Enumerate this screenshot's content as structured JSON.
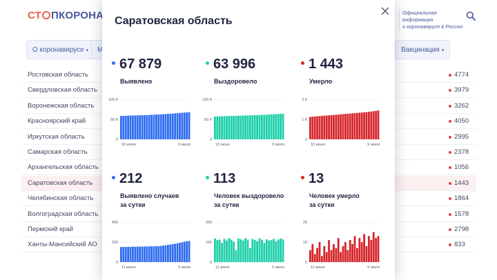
{
  "header": {
    "logo": {
      "part1": "СТ",
      "part2": "ПКОРОНАВИ"
    },
    "official_line1": "Официальная информация",
    "official_line2": "о коронавирусе в России",
    "search_icon": "search-icon"
  },
  "nav": {
    "about": "О коронавирусе",
    "m_fragment": "М",
    "vaccination": "Вакцинация"
  },
  "regions": [
    {
      "name": "Ростовская область",
      "value": "4774"
    },
    {
      "name": "Свердловская область",
      "value": "3979"
    },
    {
      "name": "Воронежская область",
      "value": "3262"
    },
    {
      "name": "Красноярский край",
      "value": "4050"
    },
    {
      "name": "Иркутская область",
      "value": "2995"
    },
    {
      "name": "Самарская область",
      "value": "2378"
    },
    {
      "name": "Архангельская область",
      "value": "1056"
    },
    {
      "name": "Саратовская область",
      "value": "1443",
      "highlight": true
    },
    {
      "name": "Челябинская область",
      "value": "1864"
    },
    {
      "name": "Волгоградская область",
      "value": "1578"
    },
    {
      "name": "Пермский край",
      "value": "2798"
    },
    {
      "name": "Ханты-Мансийский АО",
      "value": "833"
    }
  ],
  "modal": {
    "title": "Саратовская область",
    "close_icon": "close-icon",
    "stats": [
      {
        "value": "67 879",
        "label": "Выявлено",
        "color": "#2f6cf0"
      },
      {
        "value": "63 996",
        "label": "Выздоровело",
        "color": "#1ccfa8"
      },
      {
        "value": "1 443",
        "label": "Умерло",
        "color": "#d5242a"
      },
      {
        "value": "212",
        "label": "Выявлено случаев\nза сутки",
        "color": "#2f6cf0"
      },
      {
        "value": "113",
        "label": "Человек выздоровело\nза сутки",
        "color": "#1ccfa8"
      },
      {
        "value": "13",
        "label": "Человек умерло\nза сутки",
        "color": "#d5242a"
      }
    ]
  },
  "chart_data": [
    {
      "type": "bar",
      "series_color": "#2f6cf0",
      "yticks": [
        "100 К",
        "50 К",
        "0"
      ],
      "ylim": [
        0,
        100000
      ],
      "xlabels": [
        "10 июня",
        "9 июля"
      ],
      "values": [
        58500,
        58700,
        58900,
        59100,
        59300,
        59500,
        59700,
        59900,
        60100,
        60300,
        60500,
        60700,
        60900,
        61200,
        61500,
        61800,
        62100,
        62400,
        62800,
        63200,
        63600,
        64000,
        64400,
        64900,
        65400,
        65900,
        66400,
        66900,
        67400,
        67879
      ]
    },
    {
      "type": "bar",
      "series_color": "#1ccfa8",
      "yticks": [
        "100 К",
        "50 К",
        "0"
      ],
      "ylim": [
        0,
        100000
      ],
      "xlabels": [
        "10 июня",
        "9 июля"
      ],
      "values": [
        57000,
        57200,
        57400,
        57600,
        57800,
        58000,
        58200,
        58400,
        58600,
        58800,
        59000,
        59200,
        59400,
        59600,
        59800,
        60000,
        60200,
        60400,
        60600,
        60800,
        61100,
        61400,
        61700,
        62000,
        62300,
        62600,
        62900,
        63200,
        63600,
        63996
      ]
    },
    {
      "type": "bar",
      "series_color": "#d5242a",
      "yticks": [
        "2 К",
        "1 К",
        "0"
      ],
      "ylim": [
        0,
        2000
      ],
      "xlabels": [
        "10 июня",
        "9 июля"
      ],
      "values": [
        1120,
        1130,
        1140,
        1150,
        1160,
        1170,
        1180,
        1190,
        1200,
        1210,
        1220,
        1230,
        1240,
        1250,
        1260,
        1270,
        1280,
        1290,
        1300,
        1310,
        1320,
        1330,
        1340,
        1350,
        1360,
        1375,
        1390,
        1405,
        1425,
        1443
      ]
    },
    {
      "type": "bar",
      "series_color": "#2f6cf0",
      "yticks": [
        "400",
        "200",
        "0"
      ],
      "ylim": [
        0,
        400
      ],
      "xlabels": [
        "11 июня",
        "9 июля"
      ],
      "values": [
        150,
        152,
        151,
        153,
        152,
        154,
        153,
        155,
        154,
        156,
        155,
        157,
        156,
        158,
        157,
        160,
        159,
        162,
        165,
        168,
        172,
        176,
        180,
        184,
        188,
        192,
        198,
        204,
        208,
        212
      ]
    },
    {
      "type": "bar",
      "series_color": "#1ccfa8",
      "yticks": [
        "200",
        "100",
        "0"
      ],
      "ylim": [
        0,
        200
      ],
      "xlabels": [
        "11 июня",
        "9 июля"
      ],
      "values": [
        118,
        110,
        112,
        95,
        116,
        108,
        120,
        112,
        102,
        60,
        118,
        114,
        108,
        120,
        112,
        70,
        116,
        110,
        104,
        118,
        112,
        96,
        114,
        108,
        110,
        116,
        104,
        112,
        118,
        113
      ]
    },
    {
      "type": "bar",
      "series_color": "#d5242a",
      "yticks": [
        "20",
        "10",
        "0"
      ],
      "ylim": [
        0,
        20
      ],
      "xlabels": [
        "11 июня",
        "9 июля"
      ],
      "values": [
        6,
        9,
        4,
        7,
        10,
        3,
        8,
        5,
        11,
        6,
        9,
        7,
        12,
        5,
        8,
        10,
        6,
        11,
        9,
        13,
        7,
        12,
        10,
        14,
        8,
        13,
        11,
        15,
        12,
        13
      ]
    }
  ]
}
